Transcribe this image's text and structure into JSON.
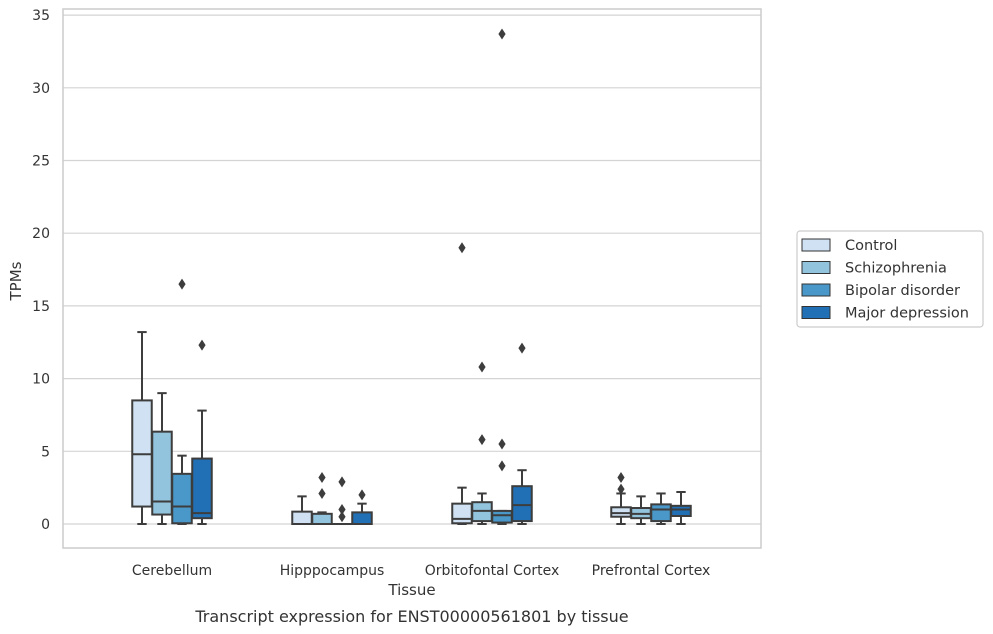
{
  "chart_data": {
    "type": "boxplot",
    "title": "Transcript expression for ENST00000561801 by tissue",
    "xlabel": "Tissue",
    "ylabel": "TPMs",
    "ylim": [
      -1.6,
      35.4
    ],
    "yticks": [
      0,
      5,
      10,
      15,
      20,
      25,
      30,
      35
    ],
    "grid": "horizontal",
    "legend_position": "right",
    "categories": [
      "Cerebellum",
      "Hipppocampus",
      "Orbitofontal Cortex",
      "Prefrontal Cortex"
    ],
    "series": [
      {
        "name": "Control",
        "color": "#cfe1f2",
        "boxes": [
          {
            "whisker_low": 0.0,
            "q1": 1.2,
            "median": 4.8,
            "q3": 8.5,
            "whisker_high": 13.2,
            "outliers": []
          },
          {
            "whisker_low": 0.0,
            "q1": 0.0,
            "median": 0.0,
            "q3": 0.85,
            "whisker_high": 1.9,
            "outliers": []
          },
          {
            "whisker_low": 0.0,
            "q1": 0.05,
            "median": 0.35,
            "q3": 1.4,
            "whisker_high": 2.5,
            "outliers": [
              19.0
            ]
          },
          {
            "whisker_low": 0.0,
            "q1": 0.5,
            "median": 0.75,
            "q3": 1.15,
            "whisker_high": 2.1,
            "outliers": [
              2.4,
              3.2
            ]
          }
        ]
      },
      {
        "name": "Schizophrenia",
        "color": "#93c4de",
        "boxes": [
          {
            "whisker_low": 0.0,
            "q1": 0.65,
            "median": 1.55,
            "q3": 6.35,
            "whisker_high": 9.0,
            "outliers": []
          },
          {
            "whisker_low": 0.0,
            "q1": 0.0,
            "median": 0.0,
            "q3": 0.7,
            "whisker_high": 0.8,
            "outliers": [
              2.1,
              3.2
            ]
          },
          {
            "whisker_low": 0.0,
            "q1": 0.2,
            "median": 0.9,
            "q3": 1.5,
            "whisker_high": 2.1,
            "outliers": [
              5.8,
              10.8
            ]
          },
          {
            "whisker_low": 0.0,
            "q1": 0.4,
            "median": 0.7,
            "q3": 1.1,
            "whisker_high": 1.9,
            "outliers": []
          }
        ]
      },
      {
        "name": "Bipolar disorder",
        "color": "#4a98c9",
        "boxes": [
          {
            "whisker_low": 0.0,
            "q1": 0.05,
            "median": 1.2,
            "q3": 3.45,
            "whisker_high": 4.7,
            "outliers": [
              16.5
            ]
          },
          {
            "whisker_low": 0.0,
            "q1": 0.0,
            "median": 0.0,
            "q3": 0.0,
            "whisker_high": 0.0,
            "outliers": [
              0.5,
              1.0,
              2.9
            ]
          },
          {
            "whisker_low": 0.0,
            "q1": 0.1,
            "median": 0.6,
            "q3": 0.9,
            "whisker_high": 0.9,
            "outliers": [
              4.0,
              5.5,
              33.7
            ]
          },
          {
            "whisker_low": 0.0,
            "q1": 0.2,
            "median": 1.0,
            "q3": 1.35,
            "whisker_high": 2.1,
            "outliers": []
          }
        ]
      },
      {
        "name": "Major depression",
        "color": "#2170b5",
        "boxes": [
          {
            "whisker_low": 0.0,
            "q1": 0.4,
            "median": 0.75,
            "q3": 4.5,
            "whisker_high": 7.8,
            "outliers": [
              12.3
            ]
          },
          {
            "whisker_low": 0.0,
            "q1": 0.0,
            "median": 0.0,
            "q3": 0.8,
            "whisker_high": 1.4,
            "outliers": [
              2.0
            ]
          },
          {
            "whisker_low": 0.0,
            "q1": 0.2,
            "median": 1.3,
            "q3": 2.6,
            "whisker_high": 3.7,
            "outliers": [
              12.1
            ]
          },
          {
            "whisker_low": 0.0,
            "q1": 0.55,
            "median": 1.0,
            "q3": 1.25,
            "whisker_high": 2.2,
            "outliers": []
          }
        ]
      }
    ]
  }
}
